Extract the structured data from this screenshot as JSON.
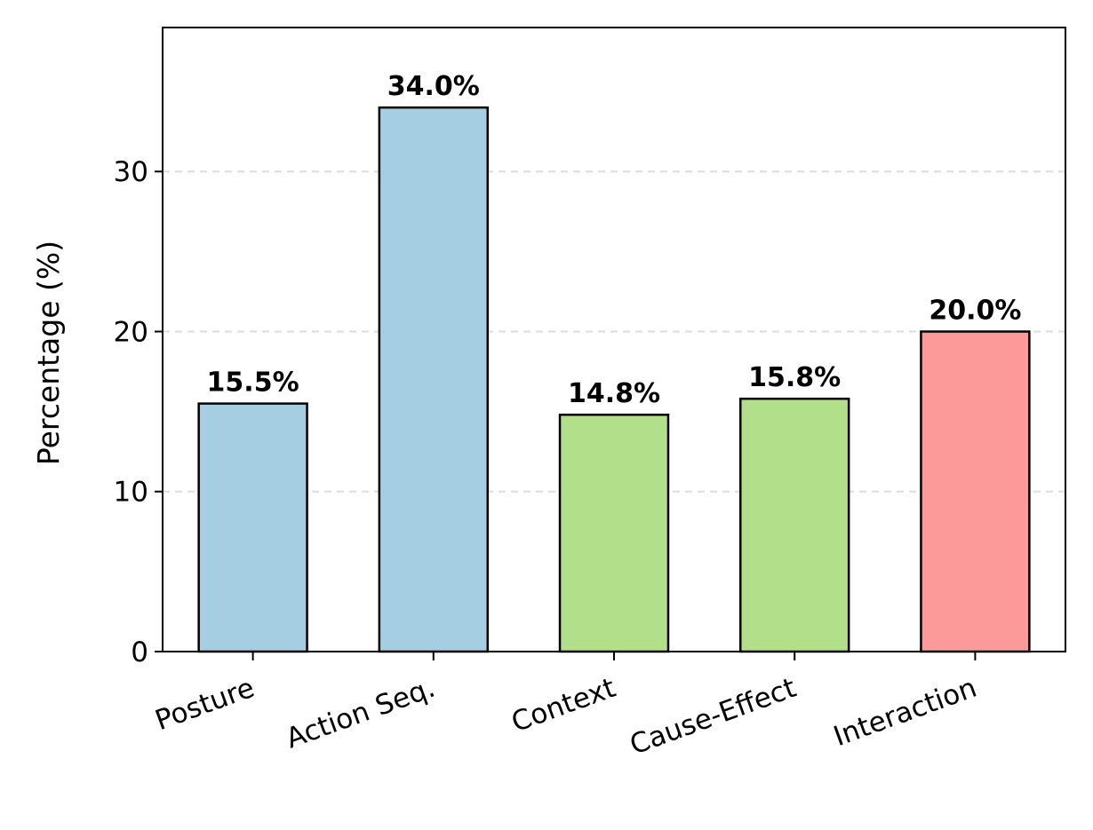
{
  "chart_data": {
    "type": "bar",
    "title": "",
    "xlabel": "",
    "ylabel": "Percentage (%)",
    "categories": [
      "Posture",
      "Action Seq.",
      "Context",
      "Cause-Effect",
      "Interaction"
    ],
    "values": [
      15.5,
      34.0,
      14.8,
      15.8,
      20.0
    ],
    "data_labels": [
      "15.5%",
      "34.0%",
      "14.8%",
      "15.8%",
      "20.0%"
    ],
    "bar_colors": [
      "#a6cee3",
      "#a6cee3",
      "#b2df8a",
      "#b2df8a",
      "#fb9a99"
    ],
    "edge_color": "#000000",
    "ylim": [
      0,
      39
    ],
    "yticks": [
      0,
      10,
      20,
      30
    ],
    "ytick_labels": [
      "0",
      "10",
      "20",
      "30"
    ],
    "grid": "y-dashed",
    "legend": "none"
  }
}
